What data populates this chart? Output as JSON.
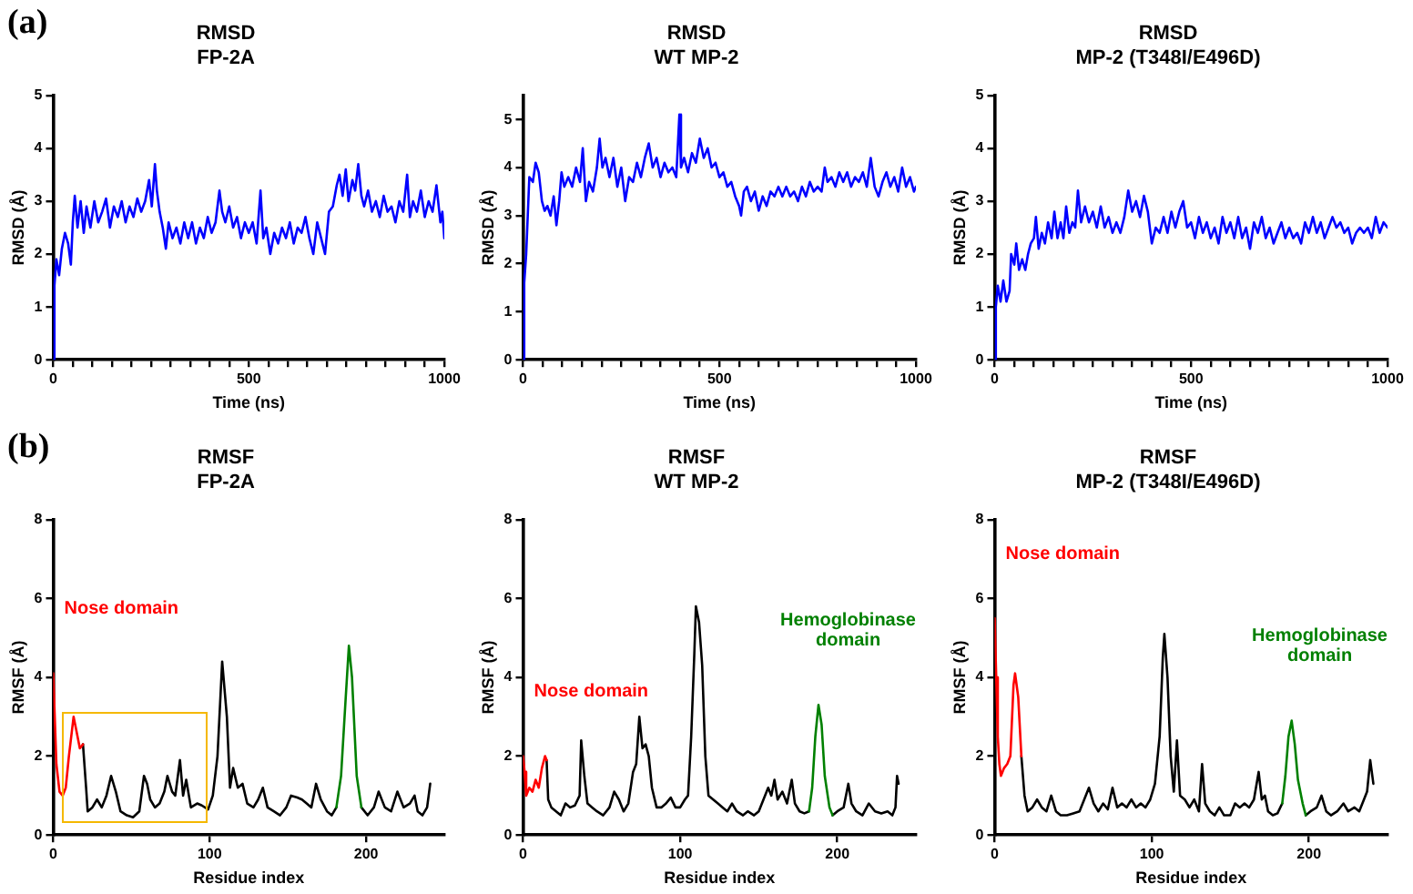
{
  "chart_data": [
    {
      "type": "line",
      "title": "RMSD",
      "subtitle": "FP-2A",
      "xlabel": "Time (ns)",
      "ylabel": "RMSD (Å)",
      "annotations": [
        "(a)"
      ],
      "xlim": [
        0,
        1000
      ],
      "ylim": [
        0,
        5
      ],
      "xticks": [
        0,
        {
          "value": 50,
          "label": null
        },
        {
          "value": 100,
          "label": null
        },
        {
          "value": 150,
          "label": null
        },
        {
          "value": 200,
          "label": null
        },
        {
          "value": 250,
          "label": null
        },
        {
          "value": 300,
          "label": null
        },
        {
          "value": 350,
          "label": null
        },
        {
          "value": 400,
          "label": null
        },
        {
          "value": 450,
          "label": null
        },
        500,
        {
          "value": 550,
          "label": null
        },
        {
          "value": 600,
          "label": null
        },
        {
          "value": 650,
          "label": null
        },
        {
          "value": 700,
          "label": null
        },
        {
          "value": 750,
          "label": null
        },
        {
          "value": 800,
          "label": null
        },
        {
          "value": 850,
          "label": null
        },
        {
          "value": 900,
          "label": null
        },
        {
          "value": 950,
          "label": null
        },
        1000
      ],
      "yticks": [
        0,
        1,
        2,
        3,
        4,
        5
      ],
      "grid": false,
      "legend": false,
      "marker": "none",
      "line_style": "solid",
      "series": [
        {
          "color": "#0000ff",
          "x": [
            0,
            3,
            8,
            15,
            22,
            30,
            38,
            45,
            50,
            55,
            62,
            70,
            78,
            85,
            95,
            105,
            115,
            125,
            135,
            145,
            155,
            165,
            175,
            185,
            195,
            205,
            215,
            225,
            235,
            245,
            252,
            260,
            265,
            272,
            280,
            288,
            295,
            305,
            315,
            325,
            335,
            345,
            355,
            365,
            375,
            385,
            395,
            405,
            415,
            425,
            432,
            440,
            450,
            460,
            470,
            480,
            490,
            500,
            510,
            520,
            530,
            537,
            545,
            555,
            565,
            575,
            585,
            595,
            605,
            615,
            625,
            635,
            645,
            655,
            665,
            675,
            685,
            695,
            705,
            715,
            725,
            732,
            740,
            748,
            755,
            765,
            772,
            780,
            788,
            795,
            805,
            815,
            825,
            835,
            845,
            855,
            865,
            875,
            885,
            895,
            905,
            912,
            920,
            930,
            940,
            950,
            960,
            970,
            980,
            990,
            995,
            1000
          ],
          "values": [
            0,
            1.4,
            1.9,
            1.6,
            2.1,
            2.4,
            2.2,
            1.8,
            2.6,
            3.1,
            2.5,
            3.0,
            2.4,
            2.9,
            2.5,
            3.0,
            2.6,
            2.8,
            3.05,
            2.5,
            2.9,
            2.7,
            3.0,
            2.6,
            2.9,
            2.7,
            3.05,
            2.8,
            3.0,
            3.4,
            2.9,
            3.7,
            3.2,
            2.8,
            2.5,
            2.1,
            2.6,
            2.3,
            2.5,
            2.2,
            2.6,
            2.3,
            2.6,
            2.2,
            2.5,
            2.3,
            2.7,
            2.4,
            2.6,
            3.2,
            2.8,
            2.6,
            2.9,
            2.5,
            2.7,
            2.3,
            2.6,
            2.4,
            2.6,
            2.2,
            3.2,
            2.3,
            2.5,
            2.0,
            2.4,
            2.2,
            2.5,
            2.3,
            2.6,
            2.2,
            2.5,
            2.4,
            2.7,
            2.3,
            2.0,
            2.6,
            2.3,
            2.0,
            2.8,
            2.9,
            3.3,
            3.5,
            3.1,
            3.6,
            3.0,
            3.4,
            3.2,
            3.7,
            3.1,
            2.9,
            3.2,
            2.8,
            3.0,
            2.7,
            3.1,
            2.8,
            2.9,
            2.6,
            3.0,
            2.8,
            3.5,
            2.7,
            3.0,
            2.8,
            3.2,
            2.7,
            3.0,
            2.8,
            3.3,
            2.6,
            2.8,
            2.3
          ]
        }
      ]
    },
    {
      "type": "line",
      "title": "RMSD",
      "subtitle": "WT MP-2",
      "xlabel": "Time (ns)",
      "ylabel": "RMSD (Å)",
      "xlim": [
        0,
        1000
      ],
      "ylim": [
        0,
        5.5
      ],
      "xticks": [
        0,
        {
          "value": 50,
          "label": null
        },
        {
          "value": 100,
          "label": null
        },
        {
          "value": 150,
          "label": null
        },
        {
          "value": 200,
          "label": null
        },
        {
          "value": 250,
          "label": null
        },
        {
          "value": 300,
          "label": null
        },
        {
          "value": 350,
          "label": null
        },
        {
          "value": 400,
          "label": null
        },
        {
          "value": 450,
          "label": null
        },
        500,
        {
          "value": 550,
          "label": null
        },
        {
          "value": 600,
          "label": null
        },
        {
          "value": 650,
          "label": null
        },
        {
          "value": 700,
          "label": null
        },
        {
          "value": 750,
          "label": null
        },
        {
          "value": 800,
          "label": null
        },
        {
          "value": 850,
          "label": null
        },
        {
          "value": 900,
          "label": null
        },
        {
          "value": 950,
          "label": null
        },
        1000
      ],
      "yticks": [
        0,
        1,
        2,
        3,
        4,
        5
      ],
      "grid": false,
      "legend": false,
      "marker": "none",
      "line_style": "solid",
      "series": [
        {
          "color": "#0000ff",
          "x": [
            0,
            3,
            8,
            12,
            16,
            25,
            32,
            40,
            48,
            55,
            62,
            70,
            78,
            85,
            92,
            98,
            105,
            115,
            125,
            135,
            145,
            152,
            160,
            168,
            178,
            188,
            195,
            202,
            210,
            220,
            230,
            240,
            250,
            260,
            270,
            280,
            290,
            300,
            310,
            320,
            330,
            340,
            350,
            360,
            370,
            380,
            390,
            398,
            402,
            410,
            420,
            430,
            440,
            450,
            460,
            470,
            480,
            490,
            500,
            510,
            520,
            530,
            540,
            550,
            555,
            562,
            570,
            580,
            590,
            600,
            610,
            620,
            630,
            640,
            650,
            660,
            670,
            680,
            690,
            700,
            710,
            720,
            730,
            740,
            750,
            760,
            768,
            775,
            785,
            795,
            805,
            815,
            825,
            835,
            845,
            855,
            865,
            875,
            885,
            895,
            905,
            915,
            925,
            935,
            945,
            955,
            965,
            975,
            985,
            995,
            1000
          ],
          "values": [
            0,
            1.6,
            2.2,
            3.0,
            3.8,
            3.7,
            4.1,
            3.9,
            3.3,
            3.1,
            3.2,
            3.0,
            3.4,
            2.8,
            3.3,
            3.9,
            3.6,
            3.8,
            3.6,
            4.0,
            3.7,
            4.4,
            3.3,
            3.7,
            3.5,
            4.0,
            4.6,
            4.0,
            4.2,
            3.8,
            4.2,
            3.6,
            4.0,
            3.3,
            3.8,
            3.7,
            4.1,
            3.8,
            4.2,
            4.5,
            4.0,
            4.2,
            3.8,
            4.1,
            3.9,
            4.0,
            3.8,
            5.1,
            4.0,
            4.2,
            3.9,
            4.3,
            4.1,
            4.6,
            4.2,
            4.4,
            4.0,
            4.1,
            3.8,
            3.9,
            3.6,
            3.7,
            3.4,
            3.2,
            3.0,
            3.5,
            3.6,
            3.3,
            3.5,
            3.1,
            3.4,
            3.2,
            3.5,
            3.4,
            3.6,
            3.4,
            3.6,
            3.4,
            3.5,
            3.3,
            3.6,
            3.4,
            3.7,
            3.5,
            3.6,
            3.5,
            4.0,
            3.7,
            3.8,
            3.6,
            3.9,
            3.7,
            3.9,
            3.6,
            3.8,
            3.7,
            3.9,
            3.6,
            4.2,
            3.6,
            3.4,
            3.7,
            3.9,
            3.6,
            3.8,
            3.5,
            4.0,
            3.6,
            3.8,
            3.5,
            3.6
          ]
        }
      ]
    },
    {
      "type": "line",
      "title": "RMSD",
      "subtitle": "MP-2 (T348I/E496D)",
      "xlabel": "Time (ns)",
      "ylabel": "RMSD (Å)",
      "xlim": [
        0,
        1000
      ],
      "ylim": [
        0,
        5
      ],
      "xticks": [
        0,
        {
          "value": 50,
          "label": null
        },
        {
          "value": 100,
          "label": null
        },
        {
          "value": 150,
          "label": null
        },
        {
          "value": 200,
          "label": null
        },
        {
          "value": 250,
          "label": null
        },
        {
          "value": 300,
          "label": null
        },
        {
          "value": 350,
          "label": null
        },
        {
          "value": 400,
          "label": null
        },
        {
          "value": 450,
          "label": null
        },
        500,
        {
          "value": 550,
          "label": null
        },
        {
          "value": 600,
          "label": null
        },
        {
          "value": 650,
          "label": null
        },
        {
          "value": 700,
          "label": null
        },
        {
          "value": 750,
          "label": null
        },
        {
          "value": 800,
          "label": null
        },
        {
          "value": 850,
          "label": null
        },
        {
          "value": 900,
          "label": null
        },
        {
          "value": 950,
          "label": null
        },
        1000
      ],
      "yticks": [
        0,
        1,
        2,
        3,
        4,
        5
      ],
      "grid": false,
      "legend": false,
      "marker": "none",
      "line_style": "solid",
      "series": [
        {
          "color": "#0000ff",
          "x": [
            0,
            3,
            8,
            15,
            22,
            30,
            38,
            42,
            50,
            55,
            62,
            70,
            78,
            85,
            92,
            100,
            105,
            112,
            120,
            128,
            136,
            145,
            152,
            160,
            168,
            175,
            182,
            190,
            198,
            205,
            212,
            220,
            230,
            240,
            250,
            260,
            270,
            280,
            290,
            300,
            310,
            320,
            330,
            340,
            350,
            360,
            370,
            380,
            390,
            400,
            410,
            420,
            430,
            440,
            450,
            460,
            470,
            480,
            490,
            500,
            510,
            520,
            530,
            540,
            550,
            560,
            570,
            580,
            590,
            600,
            610,
            620,
            630,
            640,
            650,
            660,
            670,
            680,
            690,
            700,
            710,
            720,
            730,
            740,
            750,
            760,
            770,
            780,
            790,
            800,
            810,
            820,
            830,
            840,
            850,
            860,
            870,
            880,
            890,
            900,
            910,
            920,
            930,
            940,
            950,
            960,
            970,
            980,
            990,
            1000
          ],
          "values": [
            0,
            1.0,
            1.4,
            1.1,
            1.5,
            1.1,
            1.3,
            2.0,
            1.8,
            2.2,
            1.7,
            1.9,
            1.7,
            2.0,
            2.2,
            2.3,
            2.7,
            2.1,
            2.4,
            2.2,
            2.6,
            2.3,
            2.8,
            2.3,
            2.6,
            2.3,
            2.9,
            2.4,
            2.6,
            2.5,
            3.2,
            2.6,
            2.9,
            2.6,
            2.8,
            2.5,
            2.9,
            2.5,
            2.7,
            2.4,
            2.6,
            2.4,
            2.7,
            3.2,
            2.8,
            3.0,
            2.7,
            3.1,
            2.8,
            2.2,
            2.5,
            2.4,
            2.7,
            2.4,
            2.8,
            2.5,
            2.8,
            3.0,
            2.5,
            2.6,
            2.3,
            2.7,
            2.4,
            2.6,
            2.3,
            2.5,
            2.2,
            2.7,
            2.4,
            2.6,
            2.3,
            2.7,
            2.3,
            2.5,
            2.1,
            2.6,
            2.4,
            2.7,
            2.3,
            2.5,
            2.2,
            2.4,
            2.6,
            2.3,
            2.5,
            2.3,
            2.4,
            2.2,
            2.6,
            2.4,
            2.7,
            2.4,
            2.6,
            2.3,
            2.5,
            2.7,
            2.5,
            2.6,
            2.4,
            2.5,
            2.2,
            2.4,
            2.5,
            2.4,
            2.5,
            2.3,
            2.7,
            2.4,
            2.6,
            2.5
          ]
        }
      ]
    },
    {
      "type": "line",
      "title": "RMSF",
      "subtitle": "FP-2A",
      "xlabel": "Residue index",
      "ylabel": "RMSF (Å)",
      "annotations": [
        "(b)"
      ],
      "xlim": [
        0,
        250
      ],
      "ylim": [
        0,
        8
      ],
      "xticks": [
        0,
        100,
        200
      ],
      "yticks": [
        0,
        2,
        4,
        6,
        8
      ],
      "grid": false,
      "legend": false,
      "marker": "none",
      "line_style": "solid",
      "series": [
        {
          "name": "Nose domain",
          "color": "#ff0000",
          "x": [
            0,
            2,
            4,
            6,
            8,
            10,
            13,
            15,
            17,
            19
          ],
          "values": [
            4.1,
            1.8,
            1.1,
            1.0,
            1.2,
            2.0,
            3.0,
            2.6,
            2.2,
            2.3
          ]
        },
        {
          "color": "#008000",
          "x": [
            181,
            184,
            187,
            189,
            191,
            194,
            197
          ],
          "values": [
            0.7,
            1.5,
            3.5,
            4.8,
            4.0,
            1.5,
            0.7
          ]
        },
        {
          "color": "#000000",
          "x": [
            19,
            21,
            22,
            25,
            28,
            31,
            34,
            37,
            40,
            43,
            47,
            51,
            55,
            58,
            60,
            62,
            65,
            68,
            71,
            73,
            76,
            78,
            81,
            83,
            85,
            88,
            92,
            95,
            99,
            102,
            105,
            108,
            111,
            113,
            115,
            118,
            121,
            124,
            128,
            131,
            134,
            137,
            141,
            145,
            149,
            152,
            156,
            159,
            162,
            165,
            168,
            171,
            175,
            178,
            181,
            189,
            197,
            201,
            205,
            208,
            212,
            216,
            220,
            224,
            228,
            231,
            233,
            236,
            239,
            241
          ],
          "values": [
            2.3,
            1.2,
            0.6,
            0.7,
            0.9,
            0.7,
            1.0,
            1.5,
            1.1,
            0.6,
            0.5,
            0.45,
            0.6,
            1.5,
            1.3,
            0.9,
            0.7,
            0.8,
            1.1,
            1.5,
            1.1,
            1.0,
            1.9,
            1.0,
            1.4,
            0.7,
            0.8,
            0.75,
            0.65,
            1.0,
            2.0,
            4.4,
            3.0,
            1.2,
            1.7,
            1.2,
            1.3,
            0.8,
            0.7,
            0.9,
            1.2,
            0.7,
            0.6,
            0.5,
            0.7,
            1.0,
            0.95,
            0.9,
            0.8,
            0.7,
            1.3,
            0.9,
            0.6,
            0.5,
            0.7,
            null,
            0.7,
            0.5,
            0.7,
            1.1,
            0.7,
            0.6,
            1.1,
            0.7,
            0.8,
            1.0,
            0.6,
            0.5,
            0.7,
            1.3
          ]
        }
      ]
    },
    {
      "type": "line",
      "title": "RMSF",
      "subtitle": "WT MP-2",
      "xlabel": "Residue index",
      "ylabel": "RMSF (Å)",
      "xlim": [
        0,
        250
      ],
      "ylim": [
        0,
        8
      ],
      "xticks": [
        0,
        100,
        200
      ],
      "yticks": [
        0,
        2,
        4,
        6,
        8
      ],
      "grid": false,
      "legend": false,
      "marker": "none",
      "line_style": "solid",
      "series": [
        {
          "name": "Nose domain",
          "color": "#ff0000",
          "x": [
            0,
            1,
            2,
            4,
            6,
            8,
            10,
            12,
            14,
            15
          ],
          "values": [
            2.0,
            1.6,
            1.0,
            1.2,
            1.1,
            1.4,
            1.2,
            1.7,
            2.0,
            1.9
          ]
        },
        {
          "name": "Hemoglobinase domain",
          "color": "#008000",
          "x": [
            182,
            184,
            186,
            188,
            190,
            192,
            195,
            197
          ],
          "values": [
            0.6,
            1.2,
            2.5,
            3.3,
            2.8,
            1.5,
            0.7,
            0.5
          ]
        },
        {
          "color": "#000000",
          "x": [
            15,
            16,
            18,
            21,
            24,
            27,
            30,
            33,
            36,
            37,
            39,
            41,
            44,
            47,
            51,
            55,
            58,
            61,
            64,
            67,
            70,
            72,
            74,
            76,
            78,
            80,
            82,
            85,
            88,
            91,
            94,
            97,
            100,
            103,
            105,
            107,
            109,
            110,
            112,
            114,
            116,
            118,
            121,
            124,
            127,
            130,
            133,
            136,
            140,
            143,
            147,
            150,
            153,
            156,
            158,
            160,
            162,
            165,
            168,
            171,
            173,
            176,
            179,
            182,
            189,
            197,
            200,
            204,
            207,
            209,
            212,
            216,
            220,
            224,
            228,
            232,
            235,
            237,
            238,
            239
          ],
          "values": [
            1.9,
            0.9,
            0.7,
            0.6,
            0.5,
            0.8,
            0.7,
            0.75,
            1.0,
            2.4,
            1.5,
            0.8,
            0.7,
            0.6,
            0.5,
            0.7,
            1.1,
            0.9,
            0.6,
            0.8,
            1.6,
            1.8,
            3.0,
            2.2,
            2.3,
            2.0,
            1.2,
            0.7,
            0.7,
            0.8,
            0.95,
            0.7,
            0.7,
            0.9,
            1.0,
            2.5,
            4.6,
            5.8,
            5.4,
            4.3,
            2.0,
            1.0,
            0.9,
            0.8,
            0.7,
            0.6,
            0.8,
            0.6,
            0.5,
            0.6,
            0.5,
            0.6,
            0.9,
            1.2,
            1.0,
            1.4,
            0.9,
            1.1,
            0.8,
            1.4,
            0.8,
            0.6,
            0.55,
            0.6,
            null,
            0.5,
            0.6,
            0.7,
            1.3,
            0.8,
            0.6,
            0.5,
            0.8,
            0.6,
            0.55,
            0.6,
            0.5,
            0.7,
            1.5,
            1.3
          ]
        }
      ]
    },
    {
      "type": "line",
      "title": "RMSF",
      "subtitle": "MP-2 (T348I/E496D)",
      "xlabel": "Residue index",
      "ylabel": "RMSF (Å)",
      "xlim": [
        0,
        250
      ],
      "ylim": [
        0,
        8
      ],
      "xticks": [
        0,
        100,
        200
      ],
      "yticks": [
        0,
        2,
        4,
        6,
        8
      ],
      "grid": false,
      "legend": false,
      "marker": "none",
      "line_style": "solid",
      "series": [
        {
          "name": "Nose domain",
          "color": "#ff0000",
          "x": [
            0,
            1,
            2,
            3,
            4,
            6,
            8,
            10,
            12,
            13,
            15,
            17
          ],
          "values": [
            5.5,
            4.0,
            2.5,
            1.8,
            1.5,
            1.7,
            1.8,
            2.0,
            3.8,
            4.1,
            3.5,
            2.0
          ]
        },
        {
          "name": "Hemoglobinase domain",
          "color": "#008000",
          "x": [
            183,
            185,
            187,
            189,
            191,
            193,
            196,
            198
          ],
          "values": [
            0.8,
            1.5,
            2.5,
            2.9,
            2.3,
            1.4,
            0.8,
            0.5
          ]
        },
        {
          "color": "#000000",
          "x": [
            17,
            19,
            21,
            24,
            27,
            30,
            33,
            36,
            39,
            42,
            46,
            50,
            54,
            57,
            60,
            63,
            66,
            69,
            72,
            75,
            78,
            81,
            84,
            87,
            90,
            93,
            96,
            99,
            102,
            105,
            107,
            108,
            110,
            112,
            114,
            116,
            118,
            121,
            124,
            127,
            130,
            132,
            134,
            137,
            140,
            143,
            146,
            150,
            153,
            156,
            159,
            162,
            165,
            168,
            170,
            172,
            174,
            177,
            180,
            183,
            189,
            198,
            201,
            205,
            208,
            211,
            214,
            218,
            222,
            225,
            229,
            232,
            235,
            237,
            239,
            241
          ],
          "values": [
            2.0,
            1.0,
            0.6,
            0.7,
            0.9,
            0.7,
            0.6,
            1.0,
            0.6,
            0.5,
            0.5,
            0.55,
            0.6,
            0.9,
            1.2,
            0.8,
            0.6,
            0.8,
            0.65,
            1.2,
            0.7,
            0.8,
            0.7,
            0.9,
            0.7,
            0.8,
            0.7,
            0.9,
            1.3,
            2.5,
            4.5,
            5.1,
            4.0,
            2.0,
            1.1,
            2.4,
            1.0,
            0.9,
            0.7,
            0.9,
            0.6,
            1.8,
            0.8,
            0.6,
            0.5,
            0.7,
            0.5,
            0.5,
            0.8,
            0.7,
            0.8,
            0.7,
            0.9,
            1.6,
            0.9,
            1.0,
            0.6,
            0.5,
            0.55,
            0.8,
            null,
            0.5,
            0.6,
            0.7,
            1.0,
            0.6,
            0.5,
            0.6,
            0.8,
            0.6,
            0.7,
            0.6,
            0.9,
            1.1,
            1.9,
            1.3
          ]
        }
      ]
    }
  ]
}
